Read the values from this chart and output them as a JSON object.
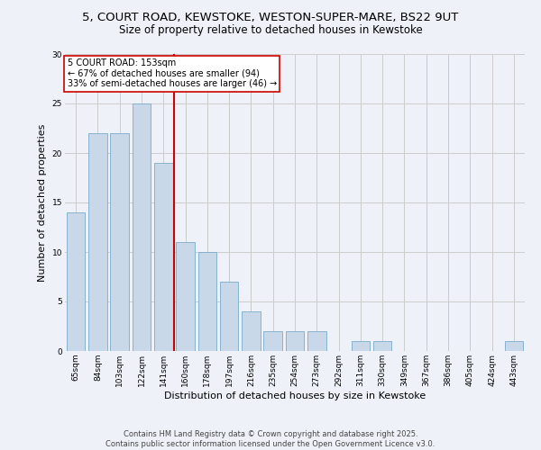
{
  "title1": "5, COURT ROAD, KEWSTOKE, WESTON-SUPER-MARE, BS22 9UT",
  "title2": "Size of property relative to detached houses in Kewstoke",
  "xlabel": "Distribution of detached houses by size in Kewstoke",
  "ylabel": "Number of detached properties",
  "categories": [
    "65sqm",
    "84sqm",
    "103sqm",
    "122sqm",
    "141sqm",
    "160sqm",
    "178sqm",
    "197sqm",
    "216sqm",
    "235sqm",
    "254sqm",
    "273sqm",
    "292sqm",
    "311sqm",
    "330sqm",
    "349sqm",
    "367sqm",
    "386sqm",
    "405sqm",
    "424sqm",
    "443sqm"
  ],
  "values": [
    14,
    22,
    22,
    25,
    19,
    11,
    10,
    7,
    4,
    2,
    2,
    2,
    0,
    1,
    1,
    0,
    0,
    0,
    0,
    0,
    1
  ],
  "bar_color": "#c8d8e8",
  "bar_edge_color": "#7aaac8",
  "reference_line_x": 4.5,
  "reference_line_label": "5 COURT ROAD: 153sqm",
  "annotation_smaller": "← 67% of detached houses are smaller (94)",
  "annotation_larger": "33% of semi-detached houses are larger (46) →",
  "annotation_box_color": "#ffffff",
  "annotation_box_edge": "#cc0000",
  "vline_color": "#cc0000",
  "ylim": [
    0,
    30
  ],
  "yticks": [
    0,
    5,
    10,
    15,
    20,
    25,
    30
  ],
  "grid_color": "#cccccc",
  "background_color": "#eef2f8",
  "footer1": "Contains HM Land Registry data © Crown copyright and database right 2025.",
  "footer2": "Contains public sector information licensed under the Open Government Licence v3.0.",
  "title_fontsize": 9.5,
  "subtitle_fontsize": 8.5,
  "axis_label_fontsize": 8,
  "tick_fontsize": 6.5,
  "footer_fontsize": 6,
  "annotation_fontsize": 7
}
